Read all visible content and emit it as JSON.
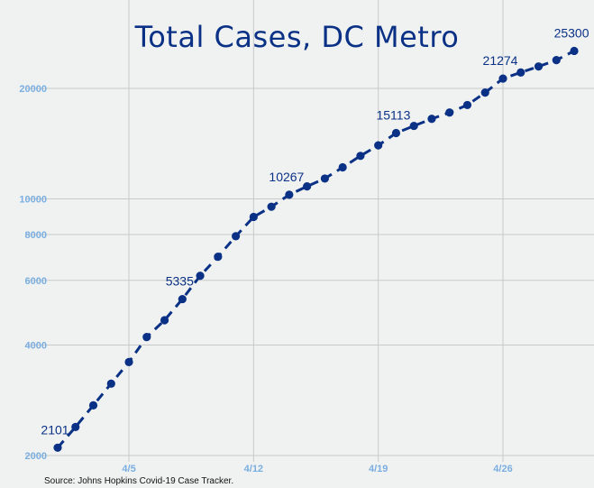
{
  "chart_data": {
    "type": "line",
    "title": "Total Cases, DC Metro",
    "source": "Source: Johns Hopkins Covid-19 Case Tracker.",
    "xlabel": "",
    "ylabel": "",
    "y_scale": "log",
    "ylim": [
      2000,
      30000
    ],
    "y_ticks": [
      2000,
      4000,
      6000,
      8000,
      10000,
      20000
    ],
    "y_tick_labels": [
      "2000",
      "4000",
      "6000",
      "8000",
      "10000",
      "20000"
    ],
    "x_ticks": [
      "4/5",
      "4/12",
      "4/19",
      "4/26"
    ],
    "x_tick_dates": [
      "04-05",
      "04-12",
      "04-19",
      "04-26"
    ],
    "grid": true,
    "line_style": "dashed",
    "colors": {
      "line": "#0a3185",
      "point": "#0a3185",
      "ticks": "#7aaee0",
      "grid": "#c9c9c9",
      "background": "#f0f2f2"
    },
    "series": [
      {
        "dates": [
          "04-01",
          "04-02",
          "04-03",
          "04-04",
          "04-05",
          "04-06",
          "04-07",
          "04-08",
          "04-09",
          "04-10",
          "04-11",
          "04-12",
          "04-13",
          "04-14",
          "04-15",
          "04-16",
          "04-17",
          "04-18",
          "04-19",
          "04-20",
          "04-21",
          "04-22",
          "04-23",
          "04-24",
          "04-25",
          "04-26",
          "04-27",
          "04-28",
          "04-29",
          "04-30"
        ],
        "values": [
          2101,
          2392,
          2740,
          3139,
          3595,
          4205,
          4673,
          5335,
          6175,
          6959,
          7913,
          8934,
          9522,
          10267,
          10820,
          11363,
          12190,
          13100,
          13995,
          15113,
          15807,
          16523,
          17191,
          18020,
          19480,
          21274,
          22100,
          22950,
          23880,
          25300
        ]
      }
    ],
    "data_labels": [
      {
        "date": "04-01",
        "text": "2101"
      },
      {
        "date": "04-08",
        "text": "5335"
      },
      {
        "date": "04-14",
        "text": "10267"
      },
      {
        "date": "04-20",
        "text": "15113"
      },
      {
        "date": "04-26",
        "text": "21274"
      },
      {
        "date": "04-30",
        "text": "25300"
      }
    ]
  }
}
